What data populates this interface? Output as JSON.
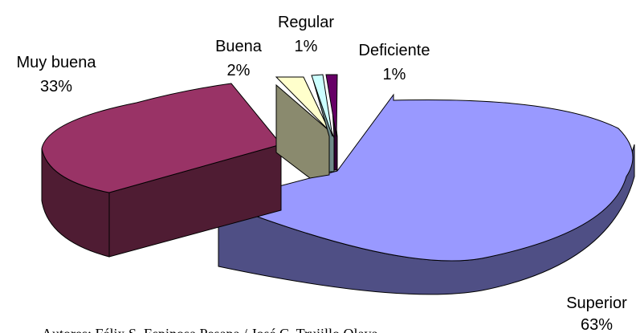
{
  "chart_data": {
    "type": "pie",
    "style": "3d-exploded",
    "title": "",
    "series": [
      {
        "label": "Superior",
        "percent": "63%",
        "value": 63,
        "color": "#9999ff"
      },
      {
        "label": "Muy buena",
        "percent": "33%",
        "value": 33,
        "color": "#993366"
      },
      {
        "label": "Buena",
        "percent": "2%",
        "value": 2,
        "color": "#ffffcc"
      },
      {
        "label": "Regular",
        "percent": "1%",
        "value": 1,
        "color": "#ccffff"
      },
      {
        "label": "Deficiente",
        "percent": "1%",
        "value": 1,
        "color": "#660066"
      }
    ]
  },
  "source_line": "Autores: Félix S. Espinosa Pesapa / José C. Trujillo Olaya"
}
